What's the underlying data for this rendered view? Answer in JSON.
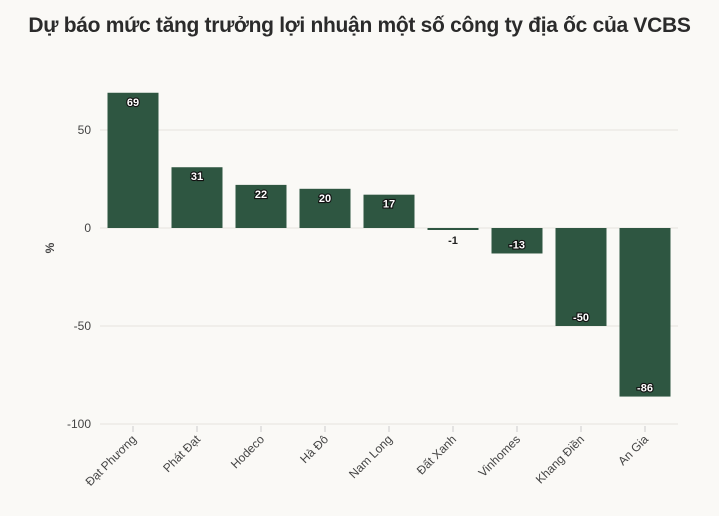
{
  "chart_data": {
    "type": "bar",
    "title": "Dự báo mức tăng trưởng lợi nhuận một số công ty địa ốc của VCBS",
    "ylabel": "%",
    "xlabel": "",
    "ylim": [
      -100,
      80
    ],
    "yticks": [
      50,
      0,
      -50,
      -100
    ],
    "grid": true,
    "categories": [
      "Đạt Phương",
      "Phát Đạt",
      "Hodeco",
      "Hà Đô",
      "Nam Long",
      "Đất Xanh",
      "Vinhomes",
      "Khang Điền",
      "An Gia"
    ],
    "values": [
      69,
      31,
      22,
      20,
      17,
      -1,
      -13,
      -50,
      -86
    ],
    "bar_color": "#2e5641"
  }
}
